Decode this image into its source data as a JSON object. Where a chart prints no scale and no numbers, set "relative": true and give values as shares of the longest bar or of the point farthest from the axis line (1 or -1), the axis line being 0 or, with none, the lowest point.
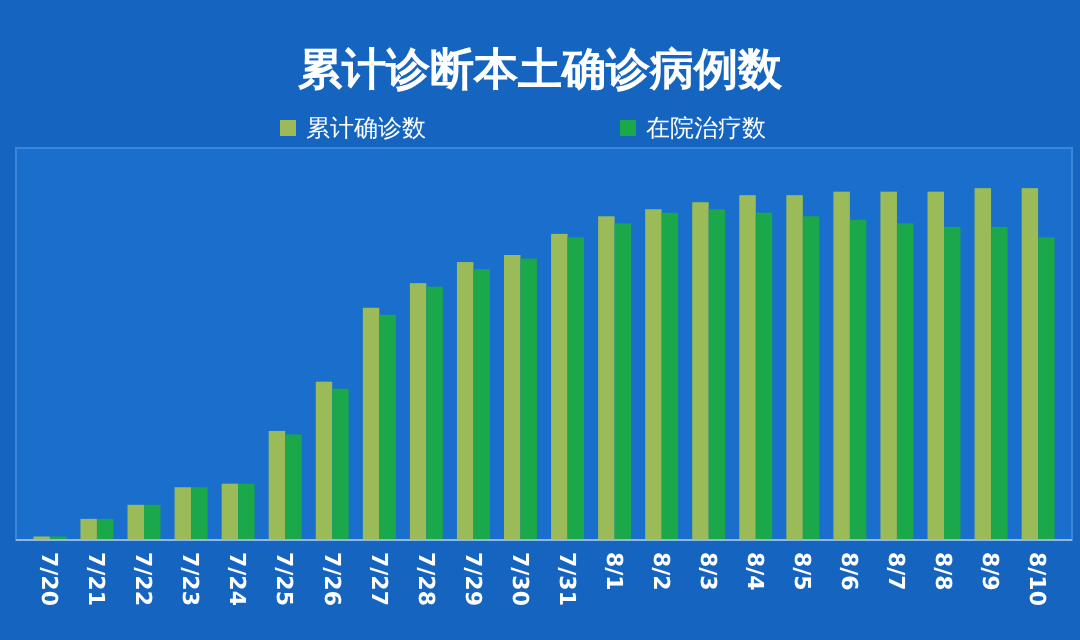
{
  "chart_data": {
    "type": "bar",
    "title": "累计诊断本土确诊病例数",
    "relative": true,
    "legend": "top",
    "categories": [
      "7/20",
      "7/21",
      "7/22",
      "7/23",
      "7/24",
      "7/25",
      "7/26",
      "7/27",
      "7/28",
      "7/29",
      "7/30",
      "7/31",
      "8/1",
      "8/2",
      "8/3",
      "8/4",
      "8/5",
      "8/6",
      "8/7",
      "8/8",
      "8/9",
      "8/10"
    ],
    "series": [
      {
        "name": "累计确诊数",
        "color": "#9bbb59",
        "values": [
          0.01,
          0.06,
          0.1,
          0.15,
          0.16,
          0.31,
          0.45,
          0.66,
          0.73,
          0.79,
          0.81,
          0.87,
          0.92,
          0.94,
          0.96,
          0.98,
          0.98,
          0.99,
          0.99,
          0.99,
          1,
          1
        ]
      },
      {
        "name": "在院治疗数",
        "color": "#1aa84a",
        "values": [
          0.01,
          0.06,
          0.1,
          0.15,
          0.16,
          0.3,
          0.43,
          0.64,
          0.72,
          0.77,
          0.8,
          0.86,
          0.9,
          0.93,
          0.94,
          0.93,
          0.92,
          0.91,
          0.9,
          0.89,
          0.89,
          0.86
        ]
      }
    ]
  }
}
